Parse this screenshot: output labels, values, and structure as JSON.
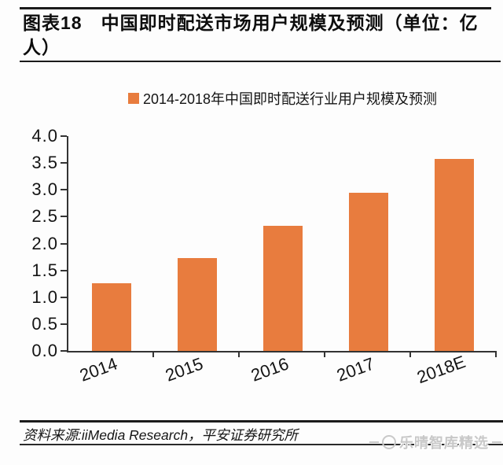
{
  "header": {
    "title": "图表18　中国即时配送市场用户规模及预测（单位：亿\n人）"
  },
  "chart_data": {
    "type": "bar",
    "title": "中国即时配送市场用户规模及预测",
    "unit": "亿人",
    "legend": "2014-2018年中国即时配送行业用户规模及预测",
    "legend_position": "top",
    "categories": [
      "2014",
      "2015",
      "2016",
      "2017",
      "2018E"
    ],
    "values": [
      1.26,
      1.73,
      2.33,
      2.95,
      3.57
    ],
    "ylim": [
      0,
      4.0
    ],
    "ytick_labels": [
      "4.0",
      "3.5",
      "3.0",
      "2.5",
      "2.0",
      "1.5",
      "1.0",
      "0.5",
      "0.0"
    ],
    "grid": false,
    "bar_color": "#E87C3E"
  },
  "footer": {
    "source": "资料来源:iiMedia Research，平安证券研究所",
    "watermark": "乐晴智库精选",
    "watermark_color": "#c8c8c8"
  }
}
